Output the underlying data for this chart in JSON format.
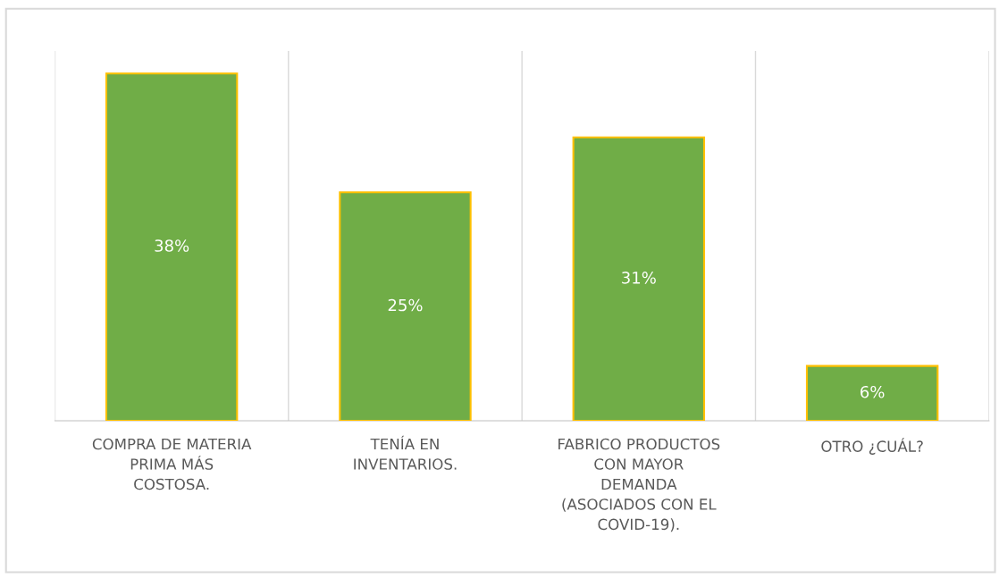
{
  "chart_data": {
    "type": "bar",
    "categories": [
      "COMPRA DE MATERIA\nPRIMA MÁS\nCOSTOSA.",
      "TENÍA EN\nINVENTARIOS.",
      "FABRICO PRODUCTOS\nCON MAYOR\nDEMANDA\n(ASOCIADOS CON EL\nCOVID-19).",
      "OTRO ¿CUÁL?"
    ],
    "values": [
      38,
      25,
      31,
      6
    ],
    "value_labels": [
      "38%",
      "25%",
      "31%",
      "6%"
    ],
    "color": "#70ad47",
    "grid": "x"
  }
}
